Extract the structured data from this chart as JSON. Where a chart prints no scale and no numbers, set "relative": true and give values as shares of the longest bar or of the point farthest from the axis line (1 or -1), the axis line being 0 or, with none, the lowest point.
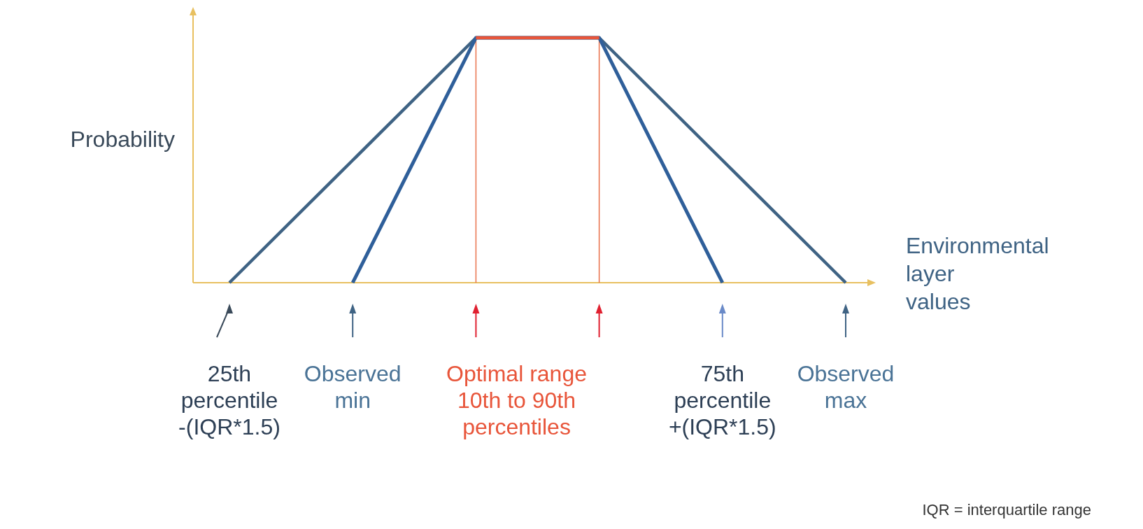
{
  "chart_data": {
    "type": "line",
    "relative": true,
    "ylabel": "Probability",
    "xlabel": "Environmental layer values",
    "categories": [
      "25th percentile -(IQR*1.5)",
      "Observed min",
      null,
      null,
      "75th percentile +(IQR*1.5)",
      "Observed max"
    ],
    "series": [
      {
        "color": "#3f6384",
        "values": [
          0,
          0.5,
          1,
          1,
          0.5,
          0
        ]
      },
      {
        "color": "#2f5f9a",
        "values": [
          null,
          0,
          1,
          1,
          0,
          null
        ]
      },
      {
        "color": "#e8553a",
        "values": [
          null,
          null,
          1,
          1,
          null,
          null
        ]
      },
      {
        "type": "bar",
        "color": "#e8704a",
        "values": [
          null,
          null,
          1,
          1,
          null,
          null
        ]
      }
    ],
    "annotations": [
      "Optimal range 10th to 90th percentiles",
      "IQR = interquartile range"
    ],
    "grid": false,
    "legend": false
  }
}
